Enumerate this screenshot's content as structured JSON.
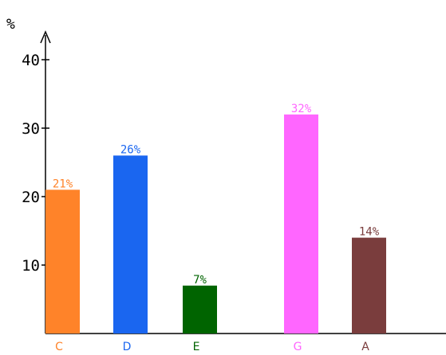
{
  "chart_data": {
    "type": "bar",
    "title": "",
    "xlabel": "",
    "ylabel": "%",
    "ylim": [
      0,
      45
    ],
    "yticks": [
      10,
      20,
      30,
      40
    ],
    "grid": false,
    "categories": [
      "C",
      "D",
      "E",
      "G",
      "A"
    ],
    "values": [
      21,
      26,
      7,
      32,
      14
    ],
    "value_labels": [
      "21%",
      "26%",
      "7%",
      "32%",
      "14%"
    ],
    "colors": [
      "#ff8329",
      "#1a66f0",
      "#006400",
      "#ff66ff",
      "#7a3d3d"
    ]
  }
}
